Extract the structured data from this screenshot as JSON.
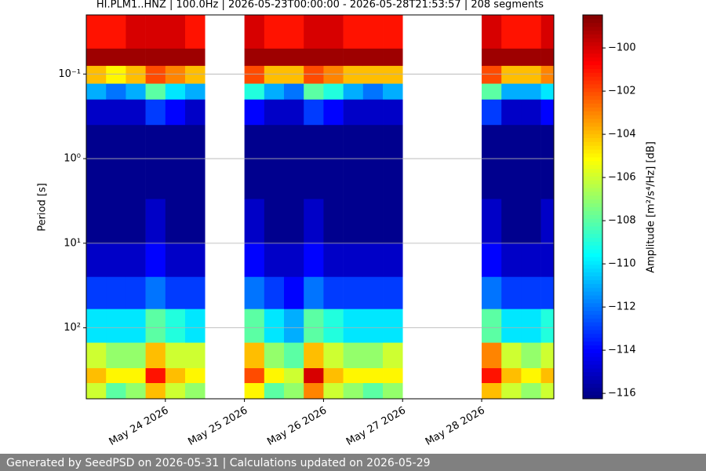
{
  "chart_data": {
    "type": "heatmap",
    "title": "HI.PLM1..HNZ | 100.0Hz | 2026-05-23T00:00:00 - 2026-05-28T21:53:57 | 208 segments",
    "ylabel": "Period [s]",
    "colorbar_label": "Amplitude [m²/s⁴/Hz] [dB]",
    "footer": "Generated by SeedPSD on 2026-05-31 | Calculations updated on 2026-05-29",
    "colormap": "jet",
    "ylog": true,
    "yinverted": true,
    "grid": true,
    "xlim": [
      "2026-05-23T00:00:00",
      "2026-05-28T21:53:57"
    ],
    "xticks": [
      {
        "value": "2026-05-24",
        "label": "May 24 2026"
      },
      {
        "value": "2026-05-25",
        "label": "May 25 2026"
      },
      {
        "value": "2026-05-26",
        "label": "May 26 2026"
      },
      {
        "value": "2026-05-27",
        "label": "May 27 2026"
      },
      {
        "value": "2026-05-28",
        "label": "May 28 2026"
      }
    ],
    "ylim": [
      0.02,
      690
    ],
    "yticks": [
      {
        "value": 0.1,
        "label": "10⁻¹"
      },
      {
        "value": 1,
        "label": "10⁰"
      },
      {
        "value": 10,
        "label": "10¹"
      },
      {
        "value": 100,
        "label": "10²"
      }
    ],
    "zlim": [
      -116.25,
      -98.47
    ],
    "zticks": [
      {
        "value": -100,
        "label": "−100"
      },
      {
        "value": -102,
        "label": "−102"
      },
      {
        "value": -104,
        "label": "−104"
      },
      {
        "value": -106,
        "label": "−106"
      },
      {
        "value": -108,
        "label": "−108"
      },
      {
        "value": -110,
        "label": "−110"
      },
      {
        "value": -112,
        "label": "−112"
      },
      {
        "value": -114,
        "label": "−114"
      },
      {
        "value": -116,
        "label": "−116"
      }
    ],
    "y_edges": [
      0.02,
      0.05,
      0.08,
      0.13,
      0.2,
      0.4,
      1,
      3,
      10,
      25,
      60,
      150,
      300,
      450,
      690
    ],
    "x": [
      "2026-05-23T00:00:00",
      "2026-05-23T06:00:00",
      "2026-05-23T12:00:00",
      "2026-05-23T18:00:00",
      "2026-05-24T00:00:00",
      "2026-05-24T06:00:00",
      "2026-05-24T12:00:00",
      "2026-05-24T18:00:00",
      "2026-05-25T00:00:00",
      "2026-05-25T06:00:00",
      "2026-05-25T12:00:00",
      "2026-05-25T18:00:00",
      "2026-05-26T00:00:00",
      "2026-05-26T06:00:00",
      "2026-05-26T12:00:00",
      "2026-05-26T18:00:00",
      "2026-05-27T00:00:00",
      "2026-05-27T06:00:00",
      "2026-05-27T12:00:00",
      "2026-05-27T18:00:00",
      "2026-05-28T00:00:00",
      "2026-05-28T06:00:00",
      "2026-05-28T12:00:00",
      "2026-05-28T18:00:00"
    ],
    "z": [
      [
        -101,
        -99,
        -104,
        -111,
        -115,
        -116,
        -116,
        -116,
        -115,
        -113,
        -110,
        -106,
        -104,
        -106
      ],
      [
        -101,
        -99,
        -105,
        -112,
        -115,
        -116,
        -116,
        -116,
        -115,
        -113,
        -110,
        -107,
        -105,
        -108
      ],
      [
        -100,
        -99,
        -104,
        -111,
        -115,
        -116,
        -116,
        -116,
        -115,
        -113,
        -110,
        -107,
        -105,
        -107
      ],
      [
        -100,
        -99,
        -102,
        -108,
        -113,
        -116,
        -116,
        -115,
        -114,
        -112,
        -108,
        -104,
        -101,
        -104
      ],
      [
        -100,
        -99,
        -103,
        -110,
        -114,
        -116,
        -116,
        -116,
        -115,
        -113,
        -109,
        -106,
        -104,
        -106
      ],
      [
        -101,
        -99,
        -104,
        -111,
        -115,
        -116,
        -116,
        -116,
        -115,
        -113,
        -110,
        -106,
        -105,
        -107
      ],
      null,
      null,
      [
        -100,
        -99,
        -102,
        -109,
        -114,
        -116,
        -116,
        -115,
        -114,
        -112,
        -108,
        -104,
        -102,
        -105
      ],
      [
        -101,
        -99,
        -104,
        -111,
        -115,
        -116,
        -116,
        -116,
        -115,
        -113,
        -110,
        -107,
        -105,
        -108
      ],
      [
        -101,
        -99,
        -104,
        -112,
        -115,
        -116,
        -116,
        -116,
        -115,
        -114,
        -111,
        -108,
        -106,
        -107
      ],
      [
        -100,
        -99,
        -102,
        -108,
        -113,
        -116,
        -116,
        -115,
        -114,
        -112,
        -108,
        -104,
        -100,
        -103
      ],
      [
        -100,
        -99,
        -103,
        -109,
        -114,
        -116,
        -116,
        -116,
        -115,
        -113,
        -109,
        -106,
        -104,
        -106
      ],
      [
        -101,
        -99,
        -104,
        -111,
        -115,
        -116,
        -116,
        -116,
        -115,
        -113,
        -110,
        -107,
        -105,
        -107
      ],
      [
        -101,
        -99,
        -104,
        -112,
        -115,
        -116,
        -116,
        -116,
        -115,
        -113,
        -110,
        -107,
        -105,
        -108
      ],
      [
        -101,
        -99,
        -104,
        -111,
        -115,
        -116,
        -116,
        -116,
        -115,
        -113,
        -110,
        -106,
        -105,
        -107
      ],
      null,
      null,
      null,
      null,
      [
        -100,
        -99,
        -102,
        -108,
        -113,
        -116,
        -116,
        -115,
        -114,
        -112,
        -108,
        -103,
        -101,
        -104
      ],
      [
        -101,
        -99,
        -104,
        -111,
        -115,
        -116,
        -116,
        -116,
        -115,
        -113,
        -110,
        -106,
        -104,
        -106
      ],
      [
        -101,
        -99,
        -104,
        -111,
        -115,
        -116,
        -116,
        -116,
        -115,
        -113,
        -110,
        -107,
        -105,
        -107
      ],
      [
        -100,
        -99,
        -103,
        -110,
        -114,
        -116,
        -116,
        -115,
        -115,
        -113,
        -109,
        -106,
        -104,
        -106
      ]
    ]
  }
}
